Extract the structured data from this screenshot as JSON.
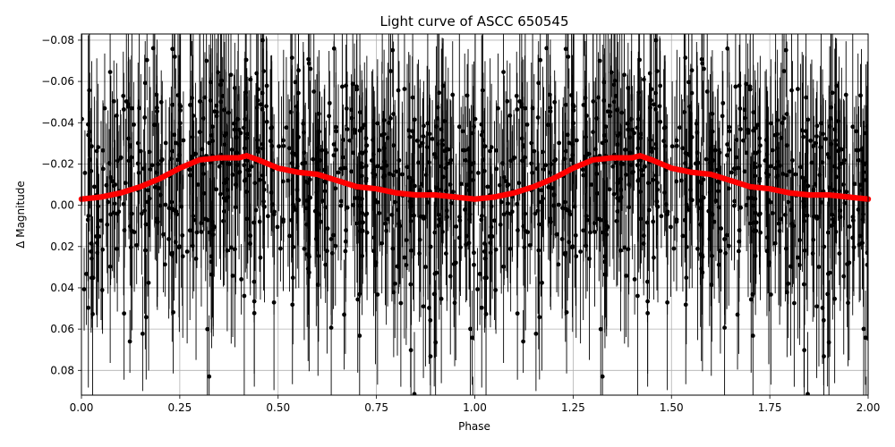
{
  "chart_data": {
    "type": "scatter",
    "title": "Light curve of ASCC 650545",
    "xlabel": "Phase",
    "ylabel": "Δ Magnitude",
    "xlim": [
      0.0,
      2.0
    ],
    "ylim": [
      0.092,
      -0.083
    ],
    "y_inverted": true,
    "grid": true,
    "x_ticks": [
      "0.00",
      "0.25",
      "0.50",
      "0.75",
      "1.00",
      "1.25",
      "1.50",
      "1.75",
      "2.00"
    ],
    "y_ticks": [
      "−0.08",
      "−0.06",
      "−0.04",
      "−0.02",
      "0.00",
      "0.02",
      "0.04",
      "0.06",
      "0.08"
    ],
    "colors": {
      "observations": "#000000",
      "binned_model": "#ff0000",
      "grid": "#b0b0b0"
    },
    "series": [
      {
        "points_count": 1400,
        "scatter_std_mag": 0.03,
        "errorbar_mag_range": [
          0.015,
          0.05
        ],
        "marker": "filled circle with vertical error bars",
        "repeat_period_phase": 1.0
      },
      {
        "marker": "thick red line of dots",
        "x": [
          0.0,
          0.05,
          0.1,
          0.15,
          0.2,
          0.25,
          0.3,
          0.35,
          0.4,
          0.42,
          0.45,
          0.5,
          0.55,
          0.6,
          0.65,
          0.7,
          0.75,
          0.8,
          0.85,
          0.9,
          0.95,
          1.0,
          1.05,
          1.1,
          1.15,
          1.2,
          1.25,
          1.3,
          1.35,
          1.4,
          1.42,
          1.45,
          1.5,
          1.55,
          1.6,
          1.65,
          1.7,
          1.75,
          1.8,
          1.85,
          1.9,
          1.95,
          2.0
        ],
        "y": [
          -0.003,
          -0.004,
          -0.006,
          -0.009,
          -0.013,
          -0.018,
          -0.022,
          -0.023,
          -0.023,
          -0.024,
          -0.022,
          -0.018,
          -0.016,
          -0.015,
          -0.012,
          -0.009,
          -0.008,
          -0.006,
          -0.005,
          -0.005,
          -0.004,
          -0.003,
          -0.004,
          -0.006,
          -0.009,
          -0.013,
          -0.018,
          -0.022,
          -0.023,
          -0.023,
          -0.024,
          -0.022,
          -0.018,
          -0.016,
          -0.015,
          -0.012,
          -0.009,
          -0.008,
          -0.006,
          -0.005,
          -0.005,
          -0.004,
          -0.003
        ]
      }
    ]
  }
}
